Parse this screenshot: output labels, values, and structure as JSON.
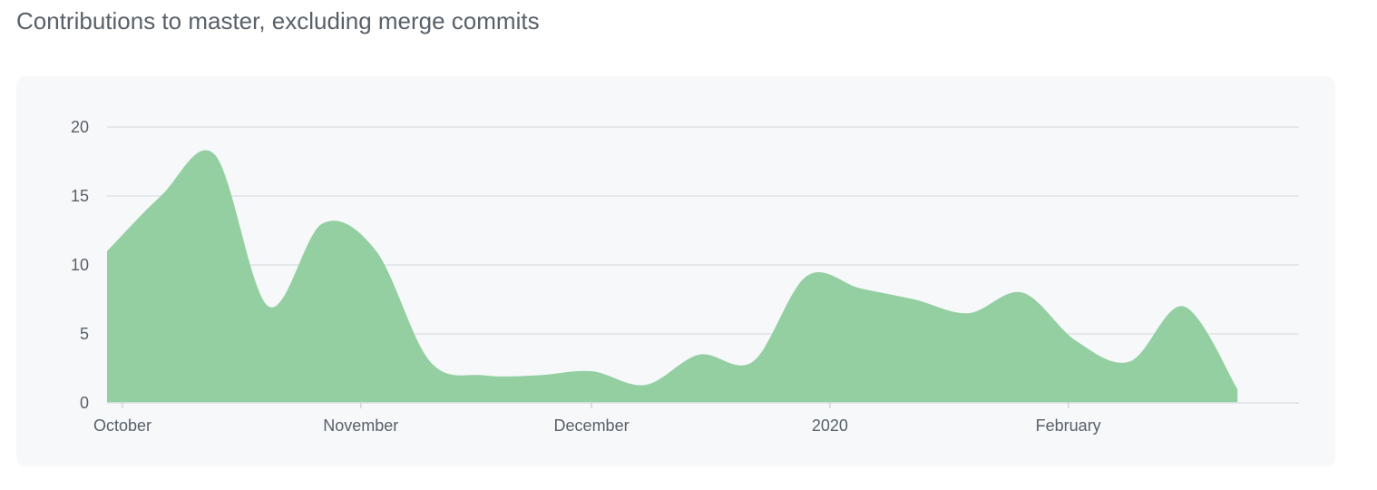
{
  "title": "Contributions to master, excluding merge commits",
  "colors": {
    "area": "#94cfa2",
    "grid": "#e1e4e8",
    "text": "#586069",
    "panel": "#f6f8fa"
  },
  "chart_data": {
    "type": "area",
    "title": "Contributions to master, excluding merge commits",
    "xlabel": "",
    "ylabel": "",
    "ylim": [
      0,
      20
    ],
    "yticks": [
      0,
      5,
      10,
      15,
      20
    ],
    "xlim": [
      "2019-09-29",
      "2020-03-02"
    ],
    "xticks": [
      {
        "date": "2019-10-01",
        "label": "October"
      },
      {
        "date": "2019-11-01",
        "label": "November"
      },
      {
        "date": "2019-12-01",
        "label": "December"
      },
      {
        "date": "2020-01-01",
        "label": "2020"
      },
      {
        "date": "2020-02-01",
        "label": "February"
      }
    ],
    "grid": true,
    "series": [
      {
        "x": [
          "2019-09-29",
          "2019-10-06",
          "2019-10-13",
          "2019-10-20",
          "2019-10-27",
          "2019-11-03",
          "2019-11-10",
          "2019-11-17",
          "2019-11-24",
          "2019-12-01",
          "2019-12-08",
          "2019-12-15",
          "2019-12-22",
          "2019-12-29",
          "2020-01-05",
          "2020-01-12",
          "2020-01-19",
          "2020-01-26",
          "2020-02-02",
          "2020-02-09",
          "2020-02-16",
          "2020-02-23"
        ],
        "values": [
          11,
          15,
          18,
          7,
          13,
          11,
          3,
          2,
          2,
          2.3,
          1.3,
          3.5,
          3,
          9.2,
          8.3,
          7.5,
          6.5,
          8,
          4.5,
          3,
          7,
          1
        ]
      }
    ]
  }
}
